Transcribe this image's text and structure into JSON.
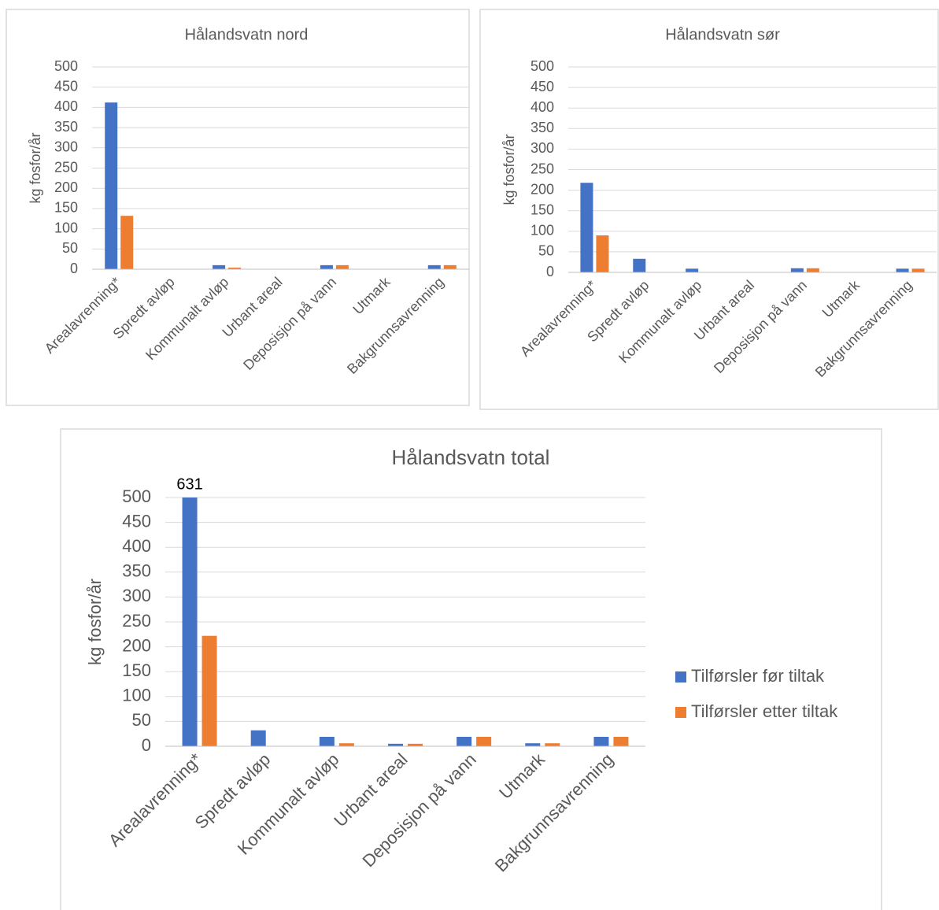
{
  "chart_data": [
    {
      "type": "bar",
      "title": "Hålandsvatn nord",
      "y_label": "kg fosfor/år",
      "categories": [
        "Arealavrenning*",
        "Spredt avløp",
        "Kommunalt avløp",
        "Urbant areal",
        "Deposisjon på vann",
        "Utmark",
        "Bakgrunnsavrenning"
      ],
      "series": [
        {
          "color": "#4472c4",
          "values": [
            412,
            0,
            10,
            0,
            10,
            0,
            10
          ]
        },
        {
          "color": "#ed7d31",
          "values": [
            132,
            0,
            4,
            0,
            10,
            0,
            10
          ]
        }
      ],
      "ylim": [
        0,
        500
      ],
      "yticks": [
        0,
        50,
        100,
        150,
        200,
        250,
        300,
        350,
        400,
        450,
        500
      ],
      "grid": true
    },
    {
      "type": "bar",
      "title": "Hålandsvatn sør",
      "y_label": "kg fosfor/år",
      "categories": [
        "Arealavrenning*",
        "Spredt avløp",
        "Kommunalt avløp",
        "Urbant areal",
        "Deposisjon på vann",
        "Utmark",
        "Bakgrunnsavrenning"
      ],
      "series": [
        {
          "color": "#4472c4",
          "values": [
            218,
            33,
            9,
            0,
            10,
            0,
            9
          ]
        },
        {
          "color": "#ed7d31",
          "values": [
            90,
            0,
            0,
            0,
            10,
            0,
            9
          ]
        }
      ],
      "ylim": [
        0,
        500
      ],
      "yticks": [
        0,
        50,
        100,
        150,
        200,
        250,
        300,
        350,
        400,
        450,
        500
      ],
      "grid": true
    },
    {
      "type": "bar",
      "title": "Hålandsvatn total",
      "y_label": "kg fosfor/år",
      "categories": [
        "Arealavrenning*",
        "Spredt avløp",
        "Kommunalt avløp",
        "Urbant areal",
        "Deposisjon på vann",
        "Utmark",
        "Bakgrunnsavrenning"
      ],
      "series": [
        {
          "name": "Tilførsler før tiltak",
          "color": "#4472c4",
          "values": [
            631,
            32,
            19,
            5,
            19,
            6,
            19
          ],
          "value_labels": [
            "631",
            null,
            null,
            null,
            null,
            null,
            null
          ]
        },
        {
          "name": "Tilførsler etter tiltak",
          "color": "#ed7d31",
          "values": [
            222,
            0,
            6,
            5,
            19,
            6,
            19
          ]
        }
      ],
      "ylim": [
        0,
        500
      ],
      "yticks": [
        0,
        50,
        100,
        150,
        200,
        250,
        300,
        350,
        400,
        450,
        500
      ],
      "grid": true,
      "legend": "right"
    }
  ]
}
